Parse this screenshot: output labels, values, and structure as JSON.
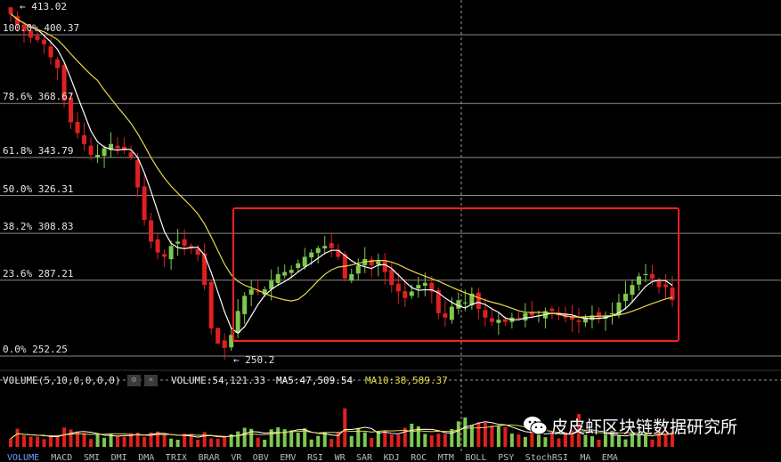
{
  "colors": {
    "up": "#7ec850",
    "down": "#e02020",
    "ma_fast": "#ffffff",
    "ma_slow": "#e8d84a",
    "box": "#ff2020",
    "grid": "#8a8a8a",
    "bg": "#000000"
  },
  "chart": {
    "high_label": "← 413.02",
    "low_label": "← 250.2",
    "fib_levels": [
      {
        "label": "100.0% 400.37",
        "price": 400.37
      },
      {
        "label": "78.6% 368.67",
        "price": 368.67
      },
      {
        "label": "61.8% 343.79",
        "price": 343.79
      },
      {
        "label": "50.0% 326.31",
        "price": 326.31
      },
      {
        "label": "38.2% 308.83",
        "price": 308.83
      },
      {
        "label": "23.6% 287.21",
        "price": 287.21
      },
      {
        "label": "0.0% 252.25",
        "price": 252.25
      }
    ]
  },
  "volume": {
    "indicator": "VOLUME(5,10,0,0,0,0)",
    "value": "VOLUME:54,121.33",
    "ma5": "MA5:47,509.54",
    "ma10": "MA10:38,589.37"
  },
  "tabs": [
    "VOLUME",
    "MACD",
    "SMI",
    "DMI",
    "DMA",
    "TRIX",
    "BRAR",
    "VR",
    "OBV",
    "EMV",
    "RSI",
    "WR",
    "SAR",
    "KDJ",
    "ROC",
    "MTM",
    "BOLL",
    "PSY",
    "StochRSI",
    "MA",
    "EMA"
  ],
  "watermark": "皮皮虾区块链数据研究所",
  "chart_data": {
    "type": "candlestick",
    "series": [
      {
        "close": [
          410,
          405,
          402,
          399,
          398,
          396,
          390,
          385,
          370,
          360,
          355,
          350,
          345,
          345,
          348,
          350,
          348,
          347,
          344,
          330,
          315,
          305,
          300,
          298,
          303,
          305,
          303,
          302,
          299,
          285,
          265,
          258,
          256,
          262,
          273,
          280,
          283,
          282,
          283,
          287,
          290,
          291,
          292,
          295,
          298,
          300,
          302,
          303,
          302,
          298,
          288,
          290,
          294,
          297,
          294,
          296,
          291,
          285,
          282,
          279,
          282,
          285,
          286,
          282,
          272,
          270,
          275,
          278,
          277,
          281,
          274,
          270,
          268,
          269,
          268,
          270,
          270,
          272,
          271,
          271,
          273,
          273,
          271,
          270,
          269,
          268,
          270,
          271,
          270,
          271,
          272,
          277,
          281,
          285,
          289,
          290,
          288,
          284,
          284,
          278
        ]
      }
    ]
  }
}
